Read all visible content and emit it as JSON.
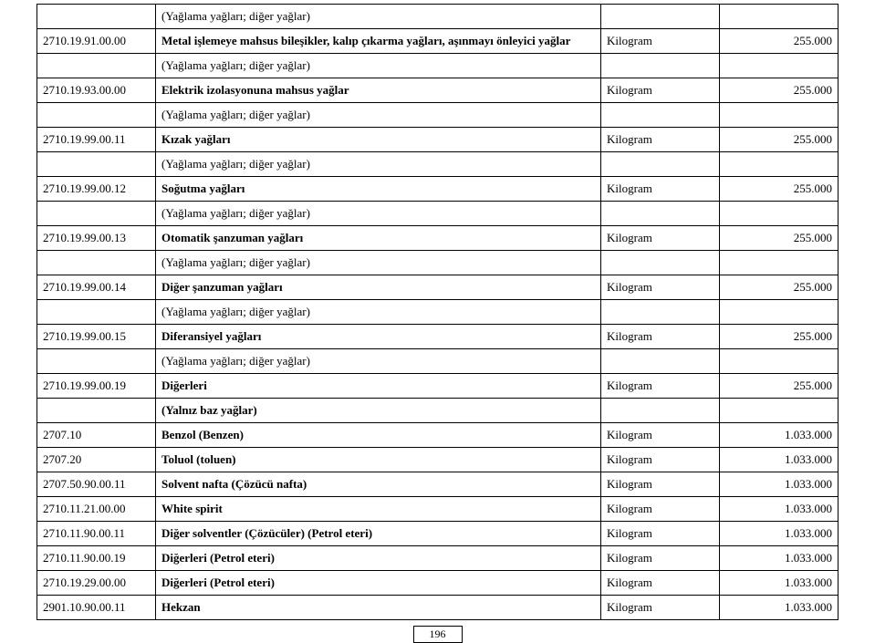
{
  "table": {
    "columns": {
      "code_width": 130,
      "unit_width": 130,
      "value_width": 130
    },
    "font_size": 13,
    "border_color": "#000000",
    "background": "#ffffff",
    "rows": [
      {
        "code": "",
        "desc": "(Yağlama yağları; diğer yağlar)",
        "desc_bold": false,
        "unit": "",
        "value": ""
      },
      {
        "code": "2710.19.91.00.00",
        "desc": "Metal işlemeye mahsus bileşikler, kalıp çıkarma yağları, aşınmayı önleyici yağlar",
        "desc_bold": true,
        "unit": "Kilogram",
        "value": "255.000"
      },
      {
        "code": "",
        "desc": "(Yağlama yağları; diğer yağlar)",
        "desc_bold": false,
        "unit": "",
        "value": ""
      },
      {
        "code": "2710.19.93.00.00",
        "desc": "Elektrik izolasyonuna mahsus yağlar",
        "desc_bold": true,
        "unit": "Kilogram",
        "value": "255.000"
      },
      {
        "code": "",
        "desc": "(Yağlama yağları; diğer yağlar)",
        "desc_bold": false,
        "unit": "",
        "value": ""
      },
      {
        "code": "2710.19.99.00.11",
        "desc": "Kızak yağları",
        "desc_bold": true,
        "unit": "Kilogram",
        "value": "255.000"
      },
      {
        "code": "",
        "desc": "(Yağlama yağları; diğer yağlar)",
        "desc_bold": false,
        "unit": "",
        "value": ""
      },
      {
        "code": "2710.19.99.00.12",
        "desc": "Soğutma yağları",
        "desc_bold": true,
        "unit": "Kilogram",
        "value": "255.000"
      },
      {
        "code": "",
        "desc": "(Yağlama yağları; diğer yağlar)",
        "desc_bold": false,
        "unit": "",
        "value": ""
      },
      {
        "code": "2710.19.99.00.13",
        "desc": "Otomatik şanzuman yağları",
        "desc_bold": true,
        "unit": "Kilogram",
        "value": "255.000"
      },
      {
        "code": "",
        "desc": "(Yağlama yağları; diğer yağlar)",
        "desc_bold": false,
        "unit": "",
        "value": ""
      },
      {
        "code": "2710.19.99.00.14",
        "desc": "Diğer şanzuman yağları",
        "desc_bold": true,
        "unit": "Kilogram",
        "value": "255.000"
      },
      {
        "code": "",
        "desc": "(Yağlama yağları; diğer yağlar)",
        "desc_bold": false,
        "unit": "",
        "value": ""
      },
      {
        "code": "2710.19.99.00.15",
        "desc": "Diferansiyel yağları",
        "desc_bold": true,
        "unit": "Kilogram",
        "value": "255.000"
      },
      {
        "code": "",
        "desc": "(Yağlama yağları; diğer yağlar)",
        "desc_bold": false,
        "unit": "",
        "value": ""
      },
      {
        "code": "2710.19.99.00.19",
        "desc": "Diğerleri",
        "desc_bold": true,
        "unit": "Kilogram",
        "value": "255.000"
      },
      {
        "code": "",
        "desc": "(Yalnız baz yağlar)",
        "desc_bold": true,
        "unit": "",
        "value": ""
      },
      {
        "code": "2707.10",
        "desc": "Benzol (Benzen)",
        "desc_bold": true,
        "unit": "Kilogram",
        "value": "1.033.000"
      },
      {
        "code": "2707.20",
        "desc": "Toluol (toluen)",
        "desc_bold": true,
        "unit": "Kilogram",
        "value": "1.033.000"
      },
      {
        "code": "2707.50.90.00.11",
        "desc": "Solvent nafta (Çözücü nafta)",
        "desc_bold": true,
        "unit": "Kilogram",
        "value": "1.033.000"
      },
      {
        "code": "2710.11.21.00.00",
        "desc": "White spirit",
        "desc_bold": true,
        "unit": "Kilogram",
        "value": "1.033.000"
      },
      {
        "code": "2710.11.90.00.11",
        "desc": "Diğer solventler (Çözücüler) (Petrol eteri)",
        "desc_bold": true,
        "unit": "Kilogram",
        "value": "1.033.000"
      },
      {
        "code": "2710.11.90.00.19",
        "desc": "Diğerleri (Petrol eteri)",
        "desc_bold": true,
        "unit": "Kilogram",
        "value": "1.033.000"
      },
      {
        "code": "2710.19.29.00.00",
        "desc": "Diğerleri (Petrol eteri)",
        "desc_bold": true,
        "unit": "Kilogram",
        "value": "1.033.000"
      },
      {
        "code": "2901.10.90.00.11",
        "desc": "Hekzan",
        "desc_bold": true,
        "unit": "Kilogram",
        "value": "1.033.000"
      }
    ]
  },
  "page_number": "196"
}
